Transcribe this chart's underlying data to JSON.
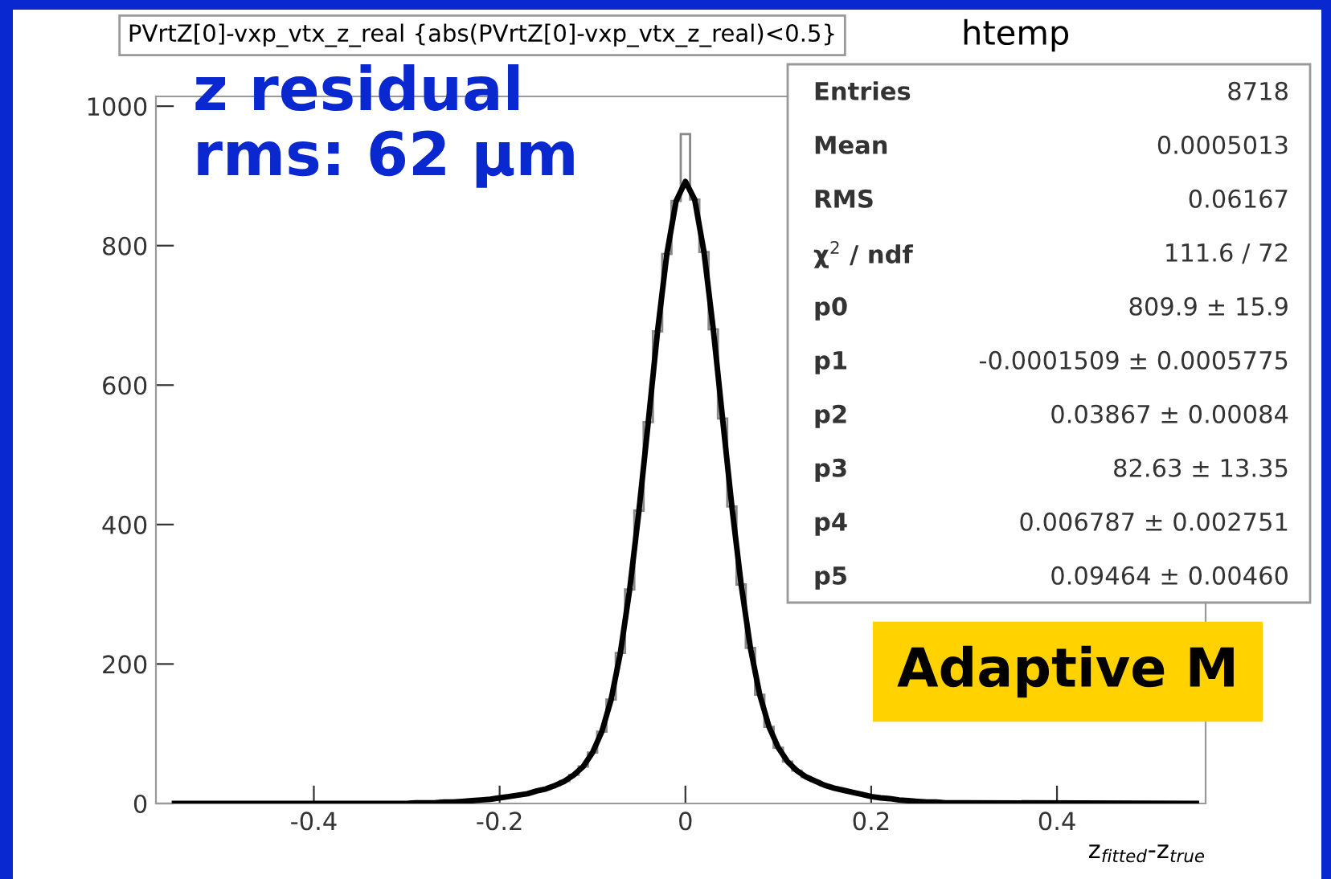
{
  "chart_data": {
    "type": "histogram",
    "title": "PVrtZ[0]-vxp_vtx_z_real {abs(PVrtZ[0]-vxp_vtx_z_real)<0.5}",
    "xlabel": "z$_{fitted}$-z$_{true}$",
    "xlim": [
      -0.57,
      0.56
    ],
    "xticks": [
      -0.4,
      -0.2,
      0,
      0.2,
      0.4
    ],
    "ylim": [
      0,
      1014
    ],
    "yticks": [
      0,
      200,
      400,
      600,
      800,
      1000
    ],
    "grid": false,
    "legend": false,
    "series": [
      {
        "color": "#888888",
        "bins": [
          -0.305,
          -0.295,
          -0.285,
          -0.275,
          -0.265,
          -0.255,
          -0.245,
          -0.235,
          -0.225,
          -0.215,
          -0.205,
          -0.195,
          -0.185,
          -0.175,
          -0.165,
          -0.155,
          -0.145,
          -0.135,
          -0.125,
          -0.115,
          -0.105,
          -0.095,
          -0.085,
          -0.075,
          -0.065,
          -0.055,
          -0.045,
          -0.035,
          -0.025,
          -0.015,
          -0.005,
          0.005,
          0.015,
          0.025,
          0.035,
          0.045,
          0.055,
          0.065,
          0.075,
          0.085,
          0.095,
          0.105,
          0.115,
          0.125,
          0.135,
          0.145,
          0.155,
          0.165,
          0.175,
          0.185,
          0.195,
          0.205,
          0.215,
          0.225,
          0.235,
          0.245,
          0.255,
          0.265,
          0.275,
          0.285,
          0.295,
          0.305
        ],
        "values": [
          0,
          1,
          1,
          1,
          2,
          2,
          3,
          4,
          5,
          6,
          8,
          10,
          12,
          14,
          18,
          21,
          26,
          32,
          41,
          53,
          73,
          103,
          149,
          216,
          307,
          420,
          547,
          677,
          788,
          864,
          960,
          866,
          791,
          680,
          552,
          426,
          314,
          223,
          156,
          110,
          80,
          60,
          47,
          38,
          32,
          26,
          22,
          19,
          16,
          13,
          10,
          8,
          7,
          5,
          4,
          3,
          2,
          2,
          1,
          1,
          1
        ]
      },
      {
        "type": "line",
        "color": "#000000",
        "x": [
          -0.55,
          -0.3,
          -0.29,
          -0.28,
          -0.27,
          -0.26,
          -0.25,
          -0.24,
          -0.23,
          -0.22,
          -0.21,
          -0.2,
          -0.19,
          -0.18,
          -0.17,
          -0.16,
          -0.15,
          -0.14,
          -0.13,
          -0.12,
          -0.11,
          -0.1,
          -0.09,
          -0.08,
          -0.07,
          -0.06,
          -0.05,
          -0.04,
          -0.03,
          -0.02,
          -0.01,
          0,
          0.01,
          0.02,
          0.03,
          0.04,
          0.05,
          0.06,
          0.07,
          0.08,
          0.09,
          0.1,
          0.11,
          0.12,
          0.13,
          0.14,
          0.15,
          0.16,
          0.17,
          0.18,
          0.19,
          0.2,
          0.21,
          0.22,
          0.23,
          0.24,
          0.25,
          0.26,
          0.27,
          0.28,
          0.29,
          0.3,
          0.55
        ],
        "values": [
          0,
          0,
          1,
          1,
          1,
          2,
          2,
          3,
          4,
          5,
          6,
          8,
          10,
          12,
          14,
          18,
          21,
          26,
          32,
          41,
          53,
          73,
          103,
          149,
          216,
          307,
          420,
          547,
          677,
          788,
          864,
          892,
          866,
          791,
          680,
          552,
          426,
          314,
          223,
          156,
          110,
          80,
          60,
          47,
          38,
          32,
          26,
          22,
          19,
          16,
          13,
          10,
          8,
          7,
          5,
          4,
          3,
          2,
          2,
          1,
          1,
          1,
          0
        ]
      }
    ],
    "annotations": [
      "z residual\nrms: 62 μm",
      "Adaptive M",
      "htemp",
      "Entries\t8718",
      "Mean\t0.0005013",
      "RMS\t0.06167",
      "χ$^{2}$ / ndf\t111.6 / 72",
      "p0\t809.9 ± 15.9",
      "p1\t-0.0001509 ± 0.0005775",
      "p2\t0.03867 ± 0.00084",
      "p3\t82.63 ± 13.35",
      "p4\t0.006787 ± 0.002751",
      "p5\t0.09464 ± 0.00460"
    ]
  }
}
